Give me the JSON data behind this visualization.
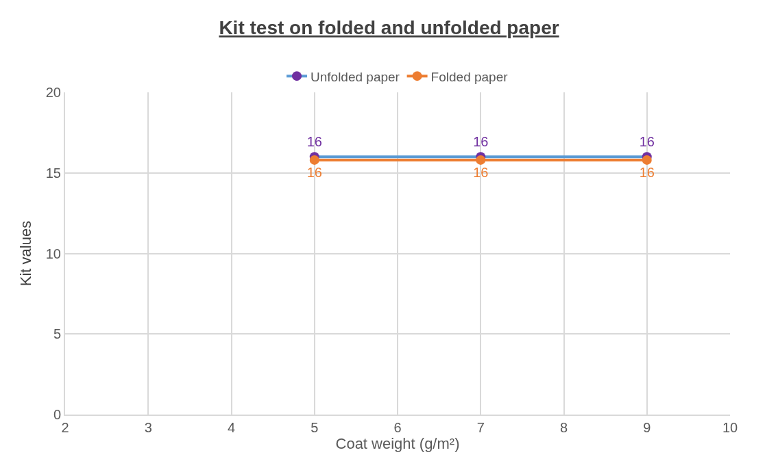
{
  "chart_data": {
    "type": "line",
    "title": "Kit test on folded and unfolded paper",
    "xlabel": "Coat weight (g/m²)",
    "ylabel": "Kit values",
    "x": [
      5,
      7,
      9
    ],
    "series": [
      {
        "name": "Unfolded paper",
        "color": "#5b9bd5",
        "colors": [
          "#7030a0",
          "#7030a0",
          "#7030a0"
        ],
        "values": [
          16,
          16,
          16
        ],
        "value_labels": [
          "16",
          "16",
          "16"
        ]
      },
      {
        "name": "Folded paper",
        "color": "#ed7d31",
        "values": [
          15.8,
          15.8,
          15.8
        ],
        "value_labels": [
          "16",
          "16",
          "16"
        ]
      }
    ],
    "xlim": [
      2,
      10
    ],
    "xticks": [
      2,
      3,
      4,
      5,
      6,
      7,
      8,
      9,
      10
    ],
    "ylim": [
      0,
      20
    ],
    "yticks": [
      0,
      5,
      10,
      15,
      20
    ],
    "grid": true,
    "legend": "top",
    "marker": "circle",
    "line_style": "solid"
  }
}
